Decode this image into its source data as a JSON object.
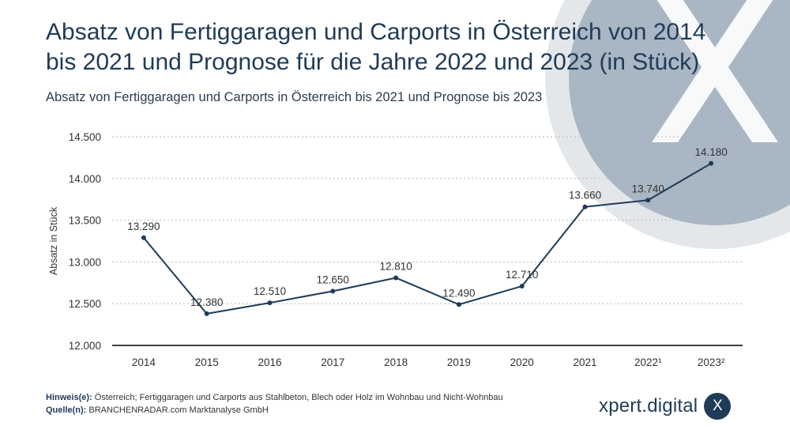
{
  "header": {
    "title": "Absatz von Fertiggaragen und Carports in Österreich von 2014 bis 2021 und Prognose für die Jahre 2022 und 2023 (in Stück)",
    "subtitle": "Absatz von Fertiggaragen und Carports in Österreich bis 2021 und Prognose bis 2023"
  },
  "chart_data": {
    "type": "line",
    "categories": [
      "2014",
      "2015",
      "2016",
      "2017",
      "2018",
      "2019",
      "2020",
      "2021",
      "2022¹",
      "2023²"
    ],
    "series": [
      {
        "values": [
          13290,
          12380,
          12510,
          12650,
          12810,
          12490,
          12710,
          13660,
          13740,
          14180
        ],
        "labels": [
          "13.290",
          "12.380",
          "12.510",
          "12.650",
          "12.810",
          "12.490",
          "12.710",
          "13.660",
          "13.740",
          "14.180"
        ]
      }
    ],
    "ylabel": "Absatz in Stück",
    "ylim": [
      12000,
      14500
    ],
    "yticks": [
      12000,
      12500,
      13000,
      13500,
      14000,
      14500
    ],
    "ytick_labels": [
      "12.000",
      "12.500",
      "13.000",
      "13.500",
      "14.000",
      "14.500"
    ],
    "grid": true,
    "colors": {
      "line": "#1f3b57",
      "grid": "#b8b8b8",
      "axis": "#000000"
    }
  },
  "footer": {
    "hinweis_label": "Hinweis(e):",
    "hinweis_text": "Österreich; Fertiggaragen und Carports aus Stahlbeton, Blech oder Holz im Wohnbau und Nicht-Wohnbau",
    "quelle_label": "Quelle(n):",
    "quelle_text": "BRANCHENRADAR.com Marktanalyse GmbH"
  },
  "brand": {
    "name": "xpert.digital",
    "badge": "X"
  },
  "background": {
    "watermark": "X",
    "accent": "#a9b6c3"
  }
}
